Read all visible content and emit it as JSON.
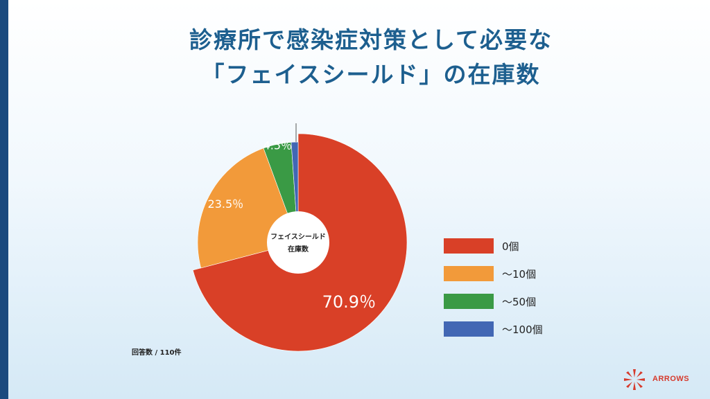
{
  "title": {
    "line1": "診療所で感染症対策として必要な",
    "line2": "「フェイスシールド」の在庫数"
  },
  "chart_data": {
    "type": "pie",
    "center_label": [
      "フェイスシールド",
      "在庫数"
    ],
    "categories": [
      "0個",
      "～10個",
      "～50個",
      "～100個"
    ],
    "values": [
      70.9,
      23.5,
      4.5,
      1.1
    ],
    "data_labels": [
      "70.9％",
      "23.5％",
      "4.5％",
      ""
    ],
    "colors": [
      "#d94027",
      "#f29a3a",
      "#3a9a45",
      "#4267b4"
    ],
    "legend_position": "right"
  },
  "footnote": "回答数 / 110件",
  "logo": {
    "text": "ARROWS"
  }
}
